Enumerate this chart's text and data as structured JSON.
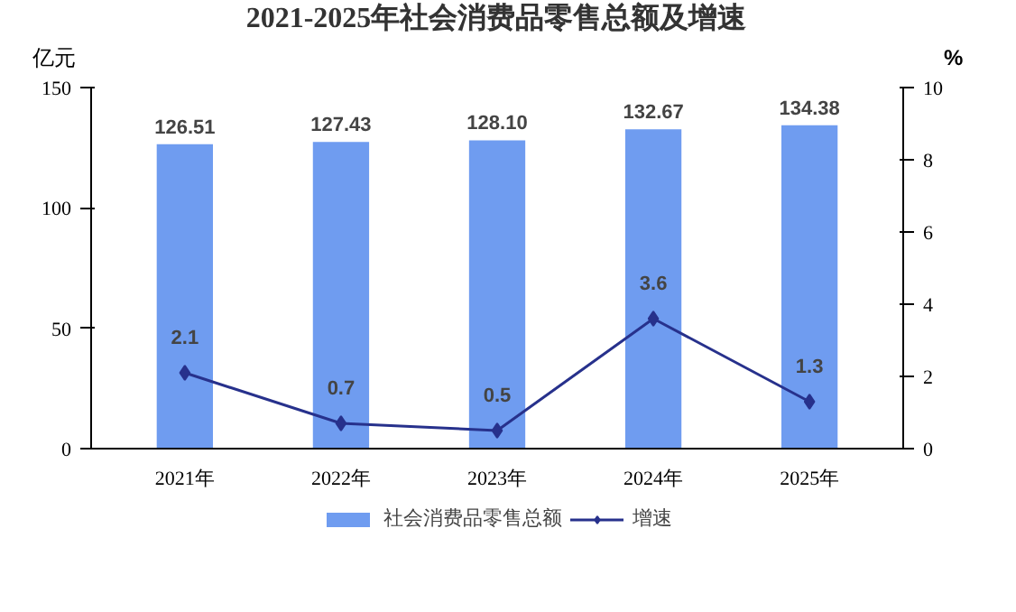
{
  "chart_data": {
    "type": "bar",
    "title": "2021-2025年社会消费品零售总额及增速",
    "ylabel": "亿元",
    "y2label": "%",
    "categories": [
      "2021年",
      "2022年",
      "2023年",
      "2024年",
      "2025年"
    ],
    "series": [
      {
        "name": "社会消费品零售总额",
        "color": "#6f9cf0",
        "values": [
          126.51,
          127.43,
          128.1,
          132.67,
          134.38
        ],
        "value_labels": [
          "126.51",
          "127.43",
          "128.10",
          "132.67",
          "134.38"
        ]
      },
      {
        "name": "增速",
        "type": "line",
        "axis": "y2",
        "color": "#27318c",
        "marker": "diamond",
        "values": [
          2.1,
          0.7,
          0.5,
          3.6,
          1.3
        ],
        "value_labels": [
          "2.1",
          "0.7",
          "0.5",
          "3.6",
          "1.3"
        ]
      }
    ],
    "ylim": [
      0,
      150
    ],
    "yticks": [
      0,
      50,
      100,
      150
    ],
    "y2lim": [
      0,
      10
    ],
    "y2ticks": [
      0,
      2,
      4,
      6,
      8,
      10
    ],
    "grid": false,
    "legend": "bottom"
  }
}
